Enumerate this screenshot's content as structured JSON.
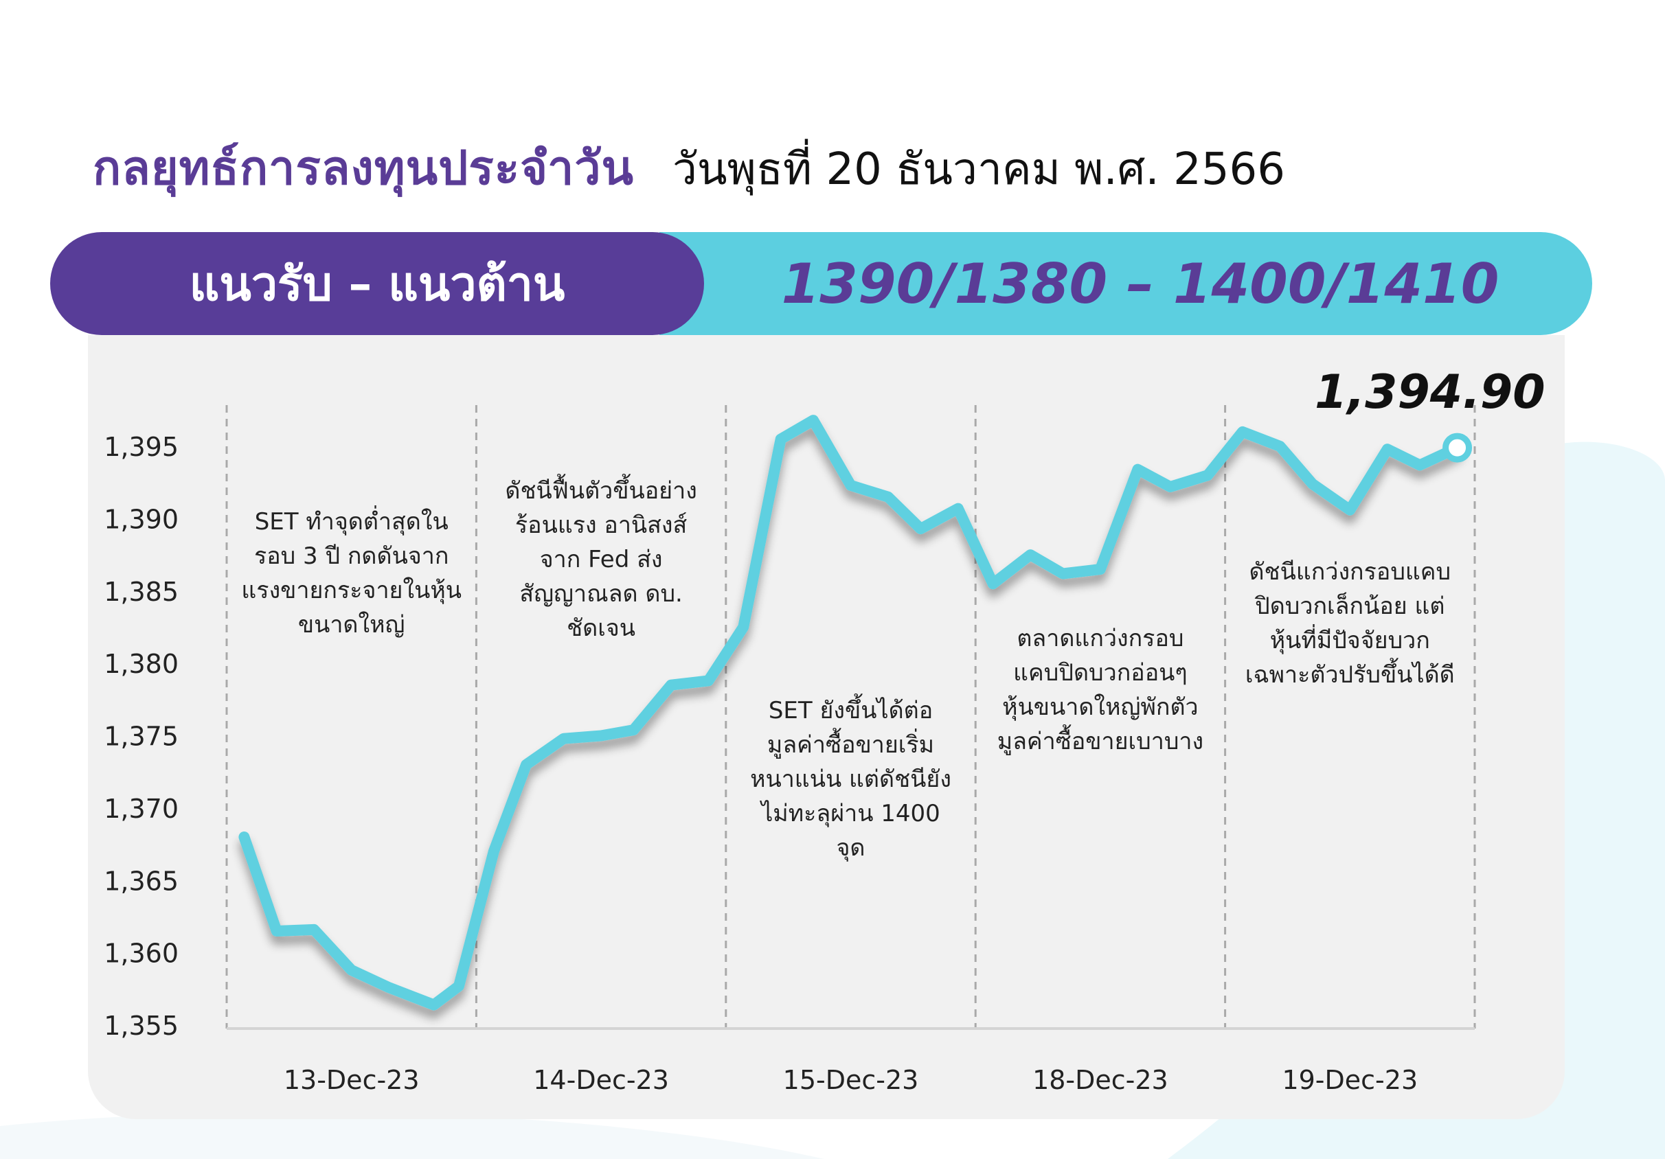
{
  "header": {
    "title": "กลยุทธ์การลงทุนประจำวัน",
    "date": "วันพุธที่ 20 ธันวาคม พ.ศ. 2566"
  },
  "band": {
    "label": "แนวรับ – แนวต้าน",
    "value": "1390/1380 –  1400/1410"
  },
  "colors": {
    "purple": "#583d98",
    "cyan": "#5ccfe0",
    "line": "#5fd0e0",
    "panel": "#f1f1f1"
  },
  "chart_data": {
    "type": "line",
    "x_categories": [
      "13-Dec-23",
      "14-Dec-23",
      "15-Dec-23",
      "18-Dec-23",
      "19-Dec-23"
    ],
    "y_ticks": [
      "1,355",
      "1,360",
      "1,365",
      "1,370",
      "1,375",
      "1,380",
      "1,385",
      "1,390",
      "1,395"
    ],
    "ylim": [
      1355,
      1395
    ],
    "grid": "dashed vertical separators between days",
    "legend": "none",
    "last_value_label": "1,394.90",
    "series": [
      {
        "points": [
          {
            "x": 0.07,
            "y": 1368.0
          },
          {
            "x": 0.2,
            "y": 1361.5
          },
          {
            "x": 0.35,
            "y": 1361.6
          },
          {
            "x": 0.5,
            "y": 1358.8
          },
          {
            "x": 0.65,
            "y": 1357.6
          },
          {
            "x": 0.83,
            "y": 1356.4
          },
          {
            "x": 0.93,
            "y": 1357.7
          },
          {
            "x": 1.07,
            "y": 1367.0
          },
          {
            "x": 1.2,
            "y": 1373.0
          },
          {
            "x": 1.35,
            "y": 1374.8
          },
          {
            "x": 1.5,
            "y": 1375.0
          },
          {
            "x": 1.63,
            "y": 1375.4
          },
          {
            "x": 1.78,
            "y": 1378.5
          },
          {
            "x": 1.93,
            "y": 1378.8
          },
          {
            "x": 2.07,
            "y": 1382.5
          },
          {
            "x": 2.22,
            "y": 1395.5
          },
          {
            "x": 2.35,
            "y": 1396.8
          },
          {
            "x": 2.5,
            "y": 1392.3
          },
          {
            "x": 2.65,
            "y": 1391.5
          },
          {
            "x": 2.78,
            "y": 1389.3
          },
          {
            "x": 2.93,
            "y": 1390.7
          },
          {
            "x": 3.07,
            "y": 1385.5
          },
          {
            "x": 3.22,
            "y": 1387.5
          },
          {
            "x": 3.35,
            "y": 1386.2
          },
          {
            "x": 3.5,
            "y": 1386.5
          },
          {
            "x": 3.65,
            "y": 1393.4
          },
          {
            "x": 3.78,
            "y": 1392.2
          },
          {
            "x": 3.93,
            "y": 1393.0
          },
          {
            "x": 4.07,
            "y": 1396.0
          },
          {
            "x": 4.22,
            "y": 1395.0
          },
          {
            "x": 4.35,
            "y": 1392.4
          },
          {
            "x": 4.5,
            "y": 1390.6
          },
          {
            "x": 4.65,
            "y": 1394.8
          },
          {
            "x": 4.78,
            "y": 1393.7
          },
          {
            "x": 4.93,
            "y": 1394.9
          }
        ]
      }
    ],
    "annotations": [
      {
        "segment": 0,
        "text": "SET ทำจุดต่ำสุดใน\nรอบ 3 ปี กดดันจาก\nแรงขายกระจายในหุ้น\nขนาดใหญ่"
      },
      {
        "segment": 1,
        "text": "ดัชนีฟื้นตัวขึ้นอย่าง\nร้อนแรง อานิสงส์\nจาก Fed ส่ง\nสัญญาณลด ดบ.\nชัดเจน"
      },
      {
        "segment": 2,
        "text": "SET ยังขึ้นได้ต่อ\nมูลค่าซื้อขายเริ่ม\nหนาแน่น แต่ดัชนียัง\nไม่ทะลุผ่าน 1400\nจุด"
      },
      {
        "segment": 3,
        "text": "ตลาดแกว่งกรอบ\nแคบปิดบวกอ่อนๆ\nหุ้นขนาดใหญ่พักตัว\nมูลค่าซื้อขายเบาบาง"
      },
      {
        "segment": 4,
        "text": "ดัชนีแกว่งกรอบแคบ\nปิดบวกเล็กน้อย แต่\nหุ้นที่มีปัจจัยบวก\nเฉพาะตัวปรับขึ้นได้ดี"
      }
    ]
  }
}
